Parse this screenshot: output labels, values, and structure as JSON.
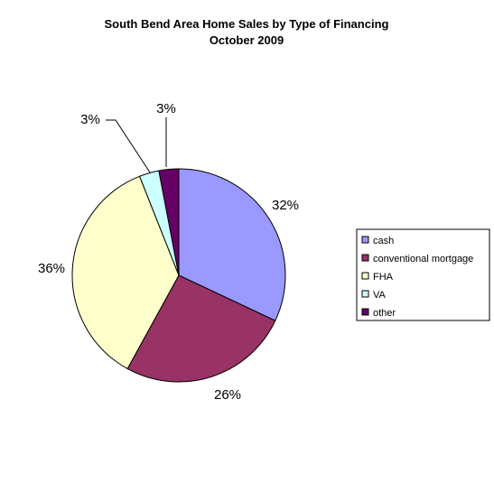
{
  "chart_data": {
    "type": "pie",
    "title": "South Bend Area Home Sales by Type of Financing",
    "subtitle": "October 2009",
    "slices": [
      {
        "label": "cash",
        "value": 32,
        "display": "32%",
        "color": "#9999ff"
      },
      {
        "label": "conventional mortgage",
        "value": 26,
        "display": "26%",
        "color": "#993366"
      },
      {
        "label": "FHA",
        "value": 36,
        "display": "36%",
        "color": "#ffffcc"
      },
      {
        "label": "VA",
        "value": 3,
        "display": "3%",
        "color": "#ccffff"
      },
      {
        "label": "other",
        "value": 3,
        "display": "3%",
        "color": "#660066"
      }
    ],
    "legend_position": "right"
  }
}
